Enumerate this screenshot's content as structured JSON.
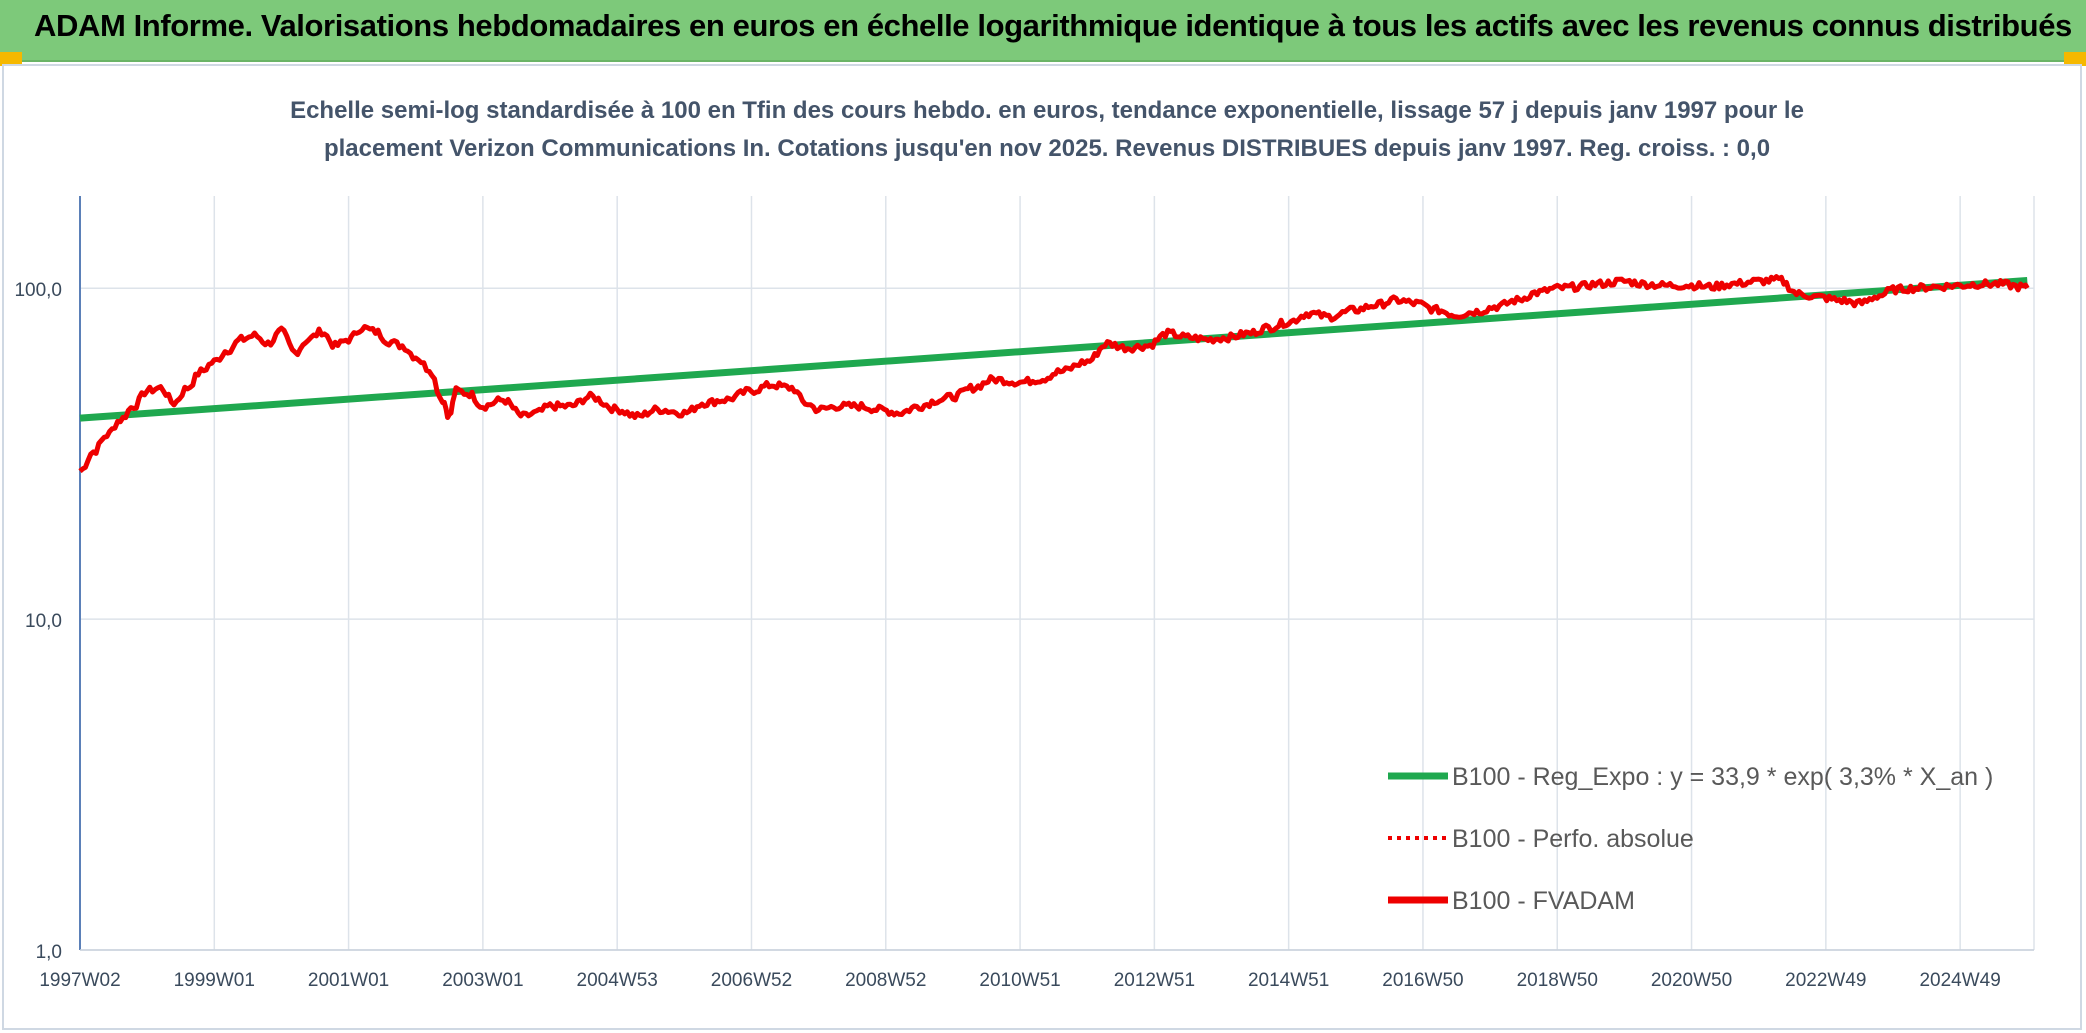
{
  "header": {
    "title": "ADAM Informe. Valorisations hebdomadaires en euros en échelle logarithmique identique à tous les actifs avec les revenus connus distribués"
  },
  "colors": {
    "header_bg": "#7dc97a",
    "trend": "#1fa84f",
    "series": "#ee0000",
    "corner": "#f5b800"
  },
  "chart_data": {
    "type": "line",
    "title_lines": [
      "Echelle semi-log standardisée à 100 en Tfin des cours hebdo. en euros, tendance exponentielle, lissage 57 j depuis janv 1997 pour le",
      "placement Verizon Communications In. Cotations jusqu'en nov 2025. Revenus DISTRIBUES depuis janv 1997. Reg. croiss. : 0,0"
    ],
    "y_scale": "log",
    "ylim": [
      1,
      190
    ],
    "y_ticks": [
      {
        "value": 1,
        "label": "1,0"
      },
      {
        "value": 10,
        "label": "10,0"
      },
      {
        "value": 100,
        "label": "100,0"
      }
    ],
    "xlim": [
      1997.0,
      2026.1
    ],
    "x_ticks": [
      {
        "value": 1997.0,
        "label": "1997W02"
      },
      {
        "value": 1999.0,
        "label": "1999W01"
      },
      {
        "value": 2001.0,
        "label": "2001W01"
      },
      {
        "value": 2003.0,
        "label": "2003W01"
      },
      {
        "value": 2005.0,
        "label": "2004W53"
      },
      {
        "value": 2007.0,
        "label": "2006W52"
      },
      {
        "value": 2009.0,
        "label": "2008W52"
      },
      {
        "value": 2011.0,
        "label": "2010W51"
      },
      {
        "value": 2013.0,
        "label": "2012W51"
      },
      {
        "value": 2015.0,
        "label": "2014W51"
      },
      {
        "value": 2017.0,
        "label": "2016W50"
      },
      {
        "value": 2019.0,
        "label": "2018W50"
      },
      {
        "value": 2021.0,
        "label": "2020W50"
      },
      {
        "value": 2023.0,
        "label": "2022W49"
      },
      {
        "value": 2025.0,
        "label": "2024W49"
      }
    ],
    "legend": {
      "position": "bottom-right",
      "items": [
        {
          "label": "B100 - Reg_Expo : y = 33,9 * exp( 3,3% *  X_an )",
          "style": "solid",
          "color": "#1fa84f"
        },
        {
          "label": "B100 - Perfo. absolue",
          "style": "dotted",
          "color": "#ee0000"
        },
        {
          "label": "B100 - FVADAM",
          "style": "solid",
          "color": "#ee0000"
        }
      ]
    },
    "series": [
      {
        "name": "B100 - Reg_Expo : y = 33,9 * exp( 3,3% *  X_an )",
        "style": "solid",
        "color": "#1fa84f",
        "x": [
          1997.0,
          2026.0
        ],
        "y": [
          40.5,
          105.5
        ]
      },
      {
        "name": "B100 - FVADAM",
        "style": "solid",
        "color": "#ee0000",
        "x": [
          1997.0,
          1997.2,
          1997.4,
          1997.6,
          1997.8,
          1998.0,
          1998.2,
          1998.4,
          1998.6,
          1998.8,
          1999.0,
          1999.2,
          1999.4,
          1999.6,
          1999.8,
          2000.0,
          2000.2,
          2000.4,
          2000.6,
          2000.8,
          2001.0,
          2001.2,
          2001.4,
          2001.6,
          2001.8,
          2002.0,
          2002.2,
          2002.4,
          2002.5,
          2002.6,
          2002.8,
          2003.0,
          2003.3,
          2003.6,
          2003.8,
          2004.0,
          2004.3,
          2004.6,
          2005.0,
          2005.3,
          2005.6,
          2006.0,
          2006.3,
          2006.6,
          2007.0,
          2007.3,
          2007.6,
          2007.8,
          2008.0,
          2008.3,
          2008.6,
          2008.9,
          2009.2,
          2009.5,
          2009.8,
          2010.0,
          2010.3,
          2010.6,
          2011.0,
          2011.3,
          2011.6,
          2012.0,
          2012.3,
          2012.6,
          2012.9,
          2013.2,
          2013.5,
          2013.8,
          2014.1,
          2014.4,
          2014.7,
          2015.0,
          2015.3,
          2015.6,
          2016.0,
          2016.3,
          2016.6,
          2016.9,
          2017.2,
          2017.5,
          2017.8,
          2018.1,
          2018.4,
          2018.7,
          2019.0,
          2019.3,
          2019.6,
          2020.0,
          2020.3,
          2020.6,
          2021.0,
          2021.3,
          2021.6,
          2022.0,
          2022.3,
          2022.6,
          2022.9,
          2023.2,
          2023.5,
          2023.8,
          2024.0,
          2024.3,
          2024.6,
          2025.0,
          2025.3,
          2025.6,
          2025.9,
          2026.0
        ],
        "y": [
          28,
          32,
          36,
          40,
          44,
          49,
          50,
          45,
          50,
          56,
          60,
          65,
          70,
          72,
          68,
          74,
          64,
          70,
          74,
          67,
          70,
          76,
          74,
          69,
          67,
          62,
          57,
          46,
          41,
          49,
          48,
          44,
          46,
          41,
          42,
          44,
          44,
          47,
          43,
          41,
          43,
          42,
          45,
          46,
          49,
          51,
          50,
          45,
          43,
          44,
          44,
          43,
          42,
          44,
          46,
          47,
          50,
          53,
          52,
          53,
          56,
          60,
          68,
          66,
          67,
          73,
          71,
          70,
          71,
          73,
          76,
          79,
          84,
          82,
          86,
          89,
          92,
          90,
          86,
          83,
          85,
          88,
          92,
          97,
          100,
          101,
          103,
          105,
          103,
          102,
          102,
          101,
          103,
          105,
          106,
          96,
          94,
          92,
          90,
          95,
          99,
          100,
          101,
          102,
          103,
          103,
          101,
          100
        ]
      }
    ]
  }
}
